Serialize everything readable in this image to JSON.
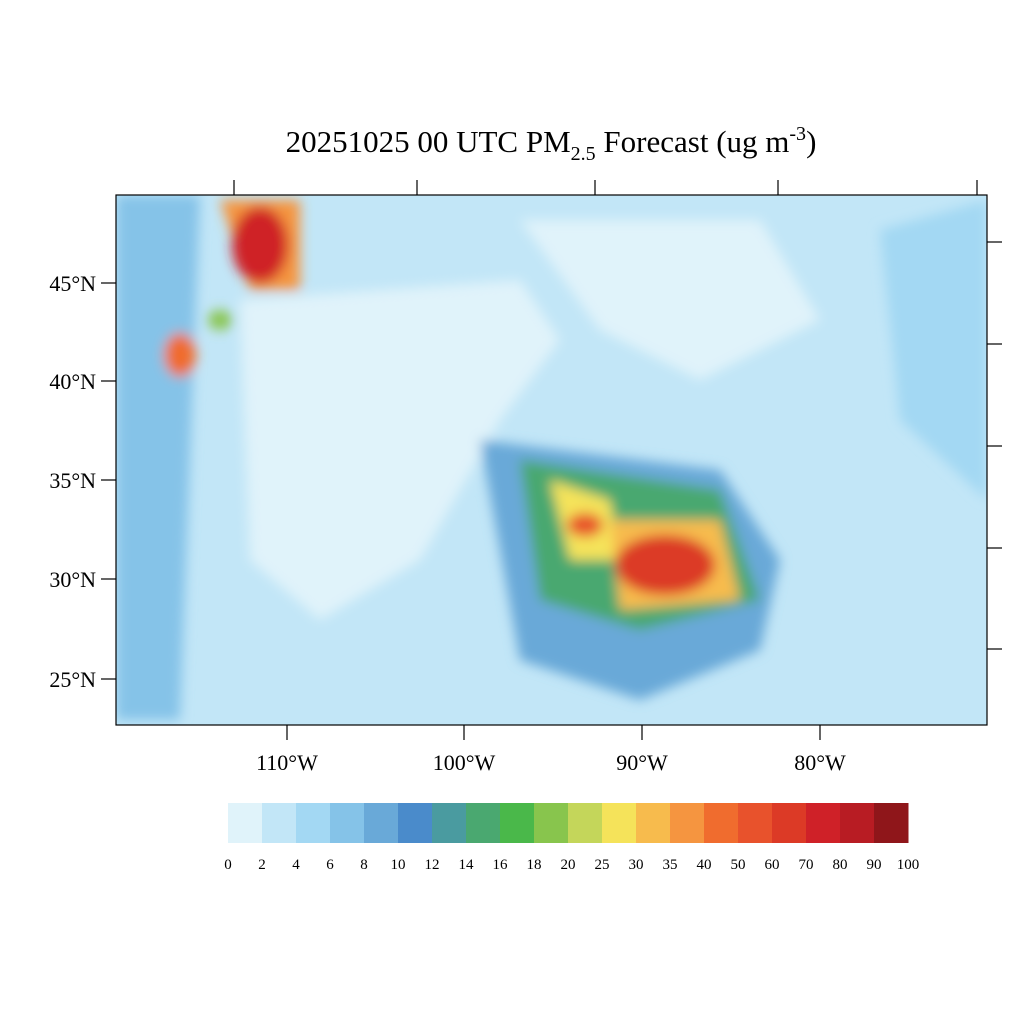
{
  "map": {
    "title": {
      "main": "20251025 00 UTC PM",
      "sub": "2.5",
      "rest": " Forecast (ug m",
      "sup": "-3",
      "end": ")"
    },
    "lat_labels": [
      "45°N",
      "40°N",
      "35°N",
      "30°N",
      "25°N"
    ],
    "lon_labels": [
      "110°W",
      "100°W",
      "90°W",
      "80°W"
    ],
    "colorbar": {
      "levels": [
        0,
        2,
        4,
        6,
        8,
        10,
        12,
        14,
        16,
        18,
        20,
        25,
        30,
        35,
        40,
        50,
        60,
        70,
        80,
        90,
        100
      ],
      "colors": [
        "#e0f3fa",
        "#c2e6f7",
        "#a3d8f3",
        "#85c3e8",
        "#69a9d8",
        "#4a8bcb",
        "#4a9ba0",
        "#4aa870",
        "#4ab84a",
        "#88c54d",
        "#c4d65a",
        "#f5e35a",
        "#f7bb4d",
        "#f59540",
        "#f06c2e",
        "#e8522c",
        "#dc3a26",
        "#cf2128",
        "#b81c23",
        "#8f161a"
      ]
    }
  }
}
